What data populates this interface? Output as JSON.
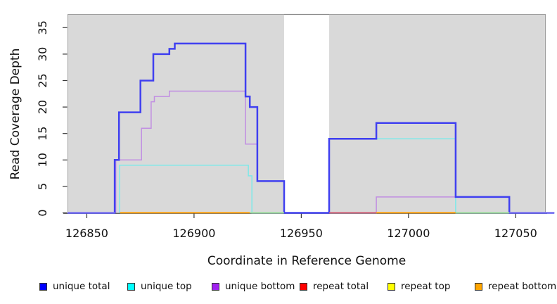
{
  "axes": {
    "xlabel": "Coordinate in Reference Genome",
    "ylabel": "Read Coverage Depth"
  },
  "legend": {
    "items": [
      {
        "label": "unique total",
        "color": "#0000ff"
      },
      {
        "label": "unique top",
        "color": "#00ffff"
      },
      {
        "label": "unique bottom",
        "color": "#a020f0"
      },
      {
        "label": "repeat total",
        "color": "#ff0000"
      },
      {
        "label": "repeat top",
        "color": "#ffff00"
      },
      {
        "label": "repeat bottom",
        "color": "#ffa500"
      }
    ]
  },
  "chart_data": {
    "type": "line",
    "step": true,
    "xlabel": "Coordinate in Reference Genome",
    "ylabel": "Read Coverage Depth",
    "xlim": [
      126841,
      127064
    ],
    "ylim": [
      0,
      37.5
    ],
    "x_ticks": [
      126850,
      126900,
      126950,
      127000,
      127050
    ],
    "y_ticks": [
      0,
      5,
      10,
      15,
      20,
      25,
      30,
      35
    ],
    "panel_bg": "#d9d9d9",
    "panel_border": "#9e9e9e",
    "gap_region": {
      "x0": 126942,
      "x1": 126963,
      "fill": "#ffffff"
    },
    "grid": false,
    "legend_position": "bottom",
    "series": [
      {
        "name": "unique total",
        "color": "#4040f0",
        "width": 2.5,
        "z": 3,
        "points": [
          [
            126841,
            0
          ],
          [
            126863,
            0
          ],
          [
            126863,
            10
          ],
          [
            126865,
            10
          ],
          [
            126865,
            19
          ],
          [
            126875,
            19
          ],
          [
            126875,
            25
          ],
          [
            126881,
            25
          ],
          [
            126881,
            30
          ],
          [
            126888.5,
            30
          ],
          [
            126888.5,
            31
          ],
          [
            126891,
            31
          ],
          [
            126891,
            32
          ],
          [
            126924,
            32
          ],
          [
            126924,
            22
          ],
          [
            126926,
            22
          ],
          [
            126926,
            20
          ],
          [
            126929.5,
            20
          ],
          [
            126929.5,
            6
          ],
          [
            126942,
            6
          ],
          [
            126942,
            0
          ],
          [
            126963,
            0
          ],
          [
            126963,
            14
          ],
          [
            126985,
            14
          ],
          [
            126985,
            17
          ],
          [
            127022,
            17
          ],
          [
            127022,
            3
          ],
          [
            127047,
            3
          ],
          [
            127047,
            0
          ],
          [
            127068,
            0
          ]
        ]
      },
      {
        "name": "unique top",
        "color": "#7de9e9",
        "width": 1.5,
        "z": 1,
        "points": [
          [
            126865.3,
            0
          ],
          [
            126865.3,
            9
          ],
          [
            126925.3,
            9
          ],
          [
            126925.3,
            7
          ],
          [
            126927,
            7
          ],
          [
            126927,
            0
          ],
          [
            126963,
            0
          ],
          [
            126963,
            14
          ],
          [
            127022,
            14
          ],
          [
            127022,
            0
          ],
          [
            127064,
            0
          ]
        ]
      },
      {
        "name": "unique bottom",
        "color": "#c18ee2",
        "width": 1.5,
        "z": 2,
        "points": [
          [
            126863.5,
            0
          ],
          [
            126863.5,
            10
          ],
          [
            126875.5,
            10
          ],
          [
            126875.5,
            16
          ],
          [
            126880,
            16
          ],
          [
            126880,
            21
          ],
          [
            126881.5,
            21
          ],
          [
            126881.5,
            22
          ],
          [
            126888.5,
            22
          ],
          [
            126888.5,
            23
          ],
          [
            126924,
            23
          ],
          [
            126924,
            13
          ],
          [
            126929.5,
            13
          ],
          [
            126929.5,
            6
          ],
          [
            126942,
            6
          ],
          [
            126942,
            0
          ],
          [
            126985,
            0
          ],
          [
            126985,
            3
          ],
          [
            127047,
            3
          ],
          [
            127047,
            0
          ],
          [
            127064,
            0
          ]
        ]
      }
    ],
    "repeat_series_all_zero": [
      {
        "name": "repeat total",
        "color": "#ff0000",
        "coverage": 0
      },
      {
        "name": "repeat top",
        "color": "#ffff00",
        "coverage": 0
      },
      {
        "name": "repeat bottom",
        "color": "#ffa500",
        "coverage": 0
      }
    ],
    "baseline_segments": [
      {
        "x0": 126841,
        "x1": 126863,
        "color": "#8279ef"
      },
      {
        "x0": 126865.5,
        "x1": 126926,
        "color": "#ff9d00"
      },
      {
        "x0": 126926,
        "x1": 126942,
        "color": "#9cda9c"
      },
      {
        "x0": 126963,
        "x1": 126985,
        "color": "#d06077"
      },
      {
        "x0": 126985,
        "x1": 127022,
        "color": "#ff9d00"
      },
      {
        "x0": 127022,
        "x1": 127047,
        "color": "#9cda9c"
      },
      {
        "x0": 127047,
        "x1": 127068,
        "color": "#8279ef"
      }
    ]
  }
}
